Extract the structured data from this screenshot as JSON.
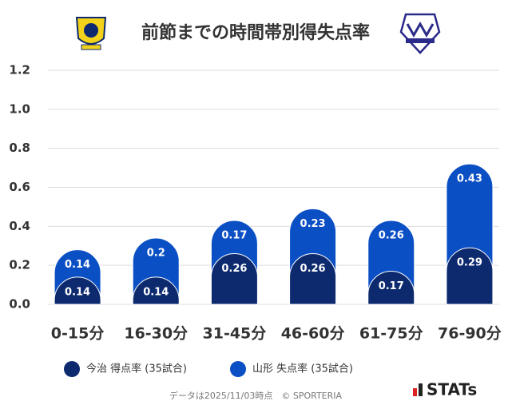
{
  "chart_data": {
    "type": "stacked_bar",
    "title": "前節までの時間帯別得失点率",
    "categories": [
      "0-15分",
      "16-30分",
      "31-45分",
      "46-60分",
      "61-75分",
      "76-90分"
    ],
    "series": [
      {
        "name": "今治 得点率 (35試合)",
        "color": "#0d2a6e",
        "values": [
          0.14,
          0.14,
          0.26,
          0.26,
          0.17,
          0.29
        ]
      },
      {
        "name": "山形 失点率 (35試合)",
        "color": "#0b4fc4",
        "values": [
          0.14,
          0.2,
          0.17,
          0.23,
          0.26,
          0.43
        ]
      }
    ],
    "ylim": [
      0,
      1.2
    ],
    "yticks": [
      {
        "value": 0,
        "label": "0.0"
      },
      {
        "value": 0.2,
        "label": "0.2"
      },
      {
        "value": 0.4,
        "label": "0.4"
      },
      {
        "value": 0.6,
        "label": "0.6"
      },
      {
        "value": 0.8,
        "label": "0.8"
      },
      {
        "value": 1,
        "label": "1.0"
      },
      {
        "value": 1.2,
        "label": "1.2"
      }
    ],
    "grid": true,
    "footer": "データは2025/11/03時点　© SPORTERIA",
    "brand": "STATs"
  }
}
